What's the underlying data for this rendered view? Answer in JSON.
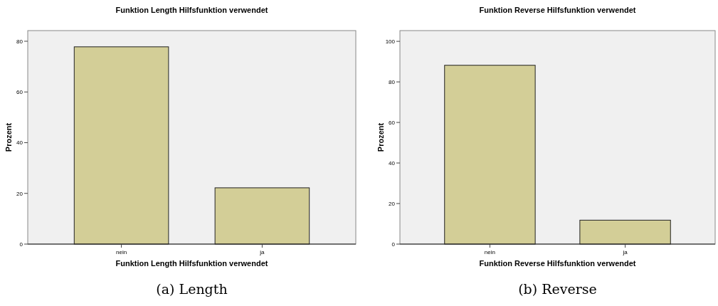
{
  "chart_data": [
    {
      "type": "bar",
      "title": "Funktion Length Hilfsfunktion verwendet",
      "xlabel": "Funktion Length Hilfsfunktion verwendet",
      "ylabel": "Prozent",
      "categories": [
        "nein",
        "ja"
      ],
      "values": [
        77.8,
        22.2
      ],
      "color": "#d3ce97",
      "ylim": [
        0,
        84.2
      ],
      "yticks": [
        0,
        20,
        40,
        60,
        80
      ],
      "grid": false,
      "annotations": [
        "(a) Length"
      ]
    },
    {
      "type": "bar",
      "title": "Funktion Reverse Hilfsfunktion verwendet",
      "xlabel": "Funktion Reverse Hilfsfunktion verwendet",
      "ylabel": "Prozent",
      "categories": [
        "nein",
        "ja"
      ],
      "values": [
        88.2,
        11.8
      ],
      "color": "#d3ce97",
      "ylim": [
        0,
        105.3
      ],
      "yticks": [
        0,
        20,
        40,
        60,
        80,
        100
      ],
      "grid": false,
      "annotations": [
        "(b) Reverse"
      ]
    }
  ]
}
